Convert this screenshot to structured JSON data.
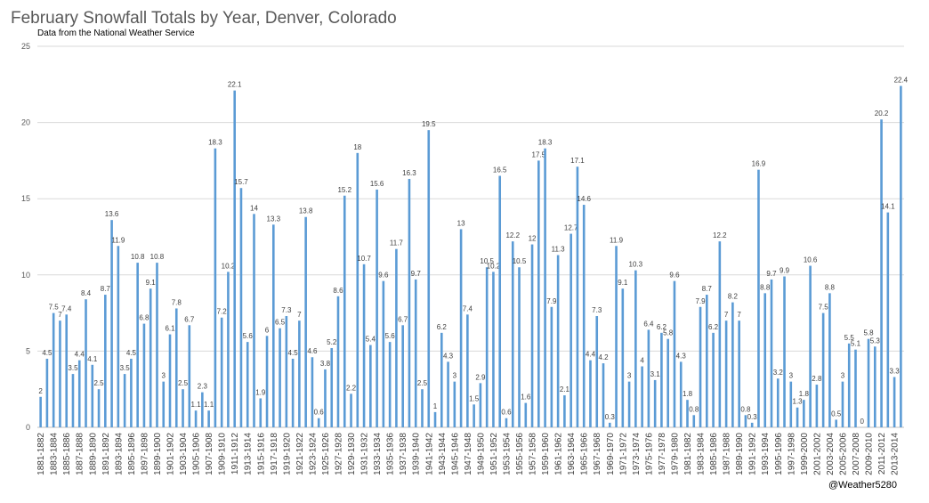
{
  "chart_data": {
    "type": "bar",
    "title": "February Snowfall Totals by Year, Denver, Colorado",
    "subtitle": "Data from the National Weather Service",
    "credit": "@Weather5280",
    "color": "#5b9bd5",
    "grid": true,
    "ylim": [
      0,
      25
    ],
    "yticks": [
      0,
      5,
      10,
      15,
      20,
      25
    ],
    "categories": [
      "1881-1882",
      null,
      "1883-1884",
      null,
      "1885-1886",
      null,
      "1887-1888",
      null,
      "1889-1890",
      null,
      "1891-1892",
      null,
      "1893-1894",
      null,
      "1895-1896",
      null,
      "1897-1898",
      null,
      "1899-1900",
      null,
      "1901-1902",
      null,
      "1903-1904",
      null,
      "1905-1906",
      null,
      "1907-1908",
      null,
      "1909-1910",
      null,
      "1911-1912",
      null,
      "1913-1914",
      null,
      "1915-1916",
      null,
      "1917-1918",
      null,
      "1919-1920",
      null,
      "1921-1922",
      null,
      "1923-1924",
      null,
      "1925-1926",
      null,
      "1927-1928",
      null,
      "1929-1930",
      null,
      "1931-1932",
      null,
      "1933-1934",
      null,
      "1935-1936",
      null,
      "1937-1938",
      null,
      "1939-1940",
      null,
      "1941-1942",
      null,
      "1943-1944",
      null,
      "1945-1946",
      null,
      "1947-1948",
      null,
      "1949-1950",
      null,
      "1951-1952",
      null,
      "1953-1954",
      null,
      "1955-1956",
      null,
      "1957-1958",
      null,
      "1959-1960",
      null,
      "1961-1962",
      null,
      "1963-1964",
      null,
      "1965-1966",
      null,
      "1967-1968",
      null,
      "1969-1970",
      null,
      "1971-1972",
      null,
      "1973-1974",
      null,
      "1975-1976",
      null,
      "1977-1978",
      null,
      "1979-1980",
      null,
      "1981-1982",
      null,
      "1983-1984",
      null,
      "1985-1986",
      null,
      "1987-1988",
      null,
      "1989-1990",
      null,
      "1991-1992",
      null,
      "1993-1994",
      null,
      "1995-1996",
      null,
      "1997-1998",
      null,
      "1999-2000",
      null,
      "2001-2002",
      null,
      "2003-2004",
      null,
      "2005-2006",
      null,
      "2007-2008",
      null,
      "2009-2010",
      null,
      "2011-2012",
      null,
      "2013-2014",
      null
    ],
    "values": [
      2,
      4.5,
      7.5,
      7,
      7.4,
      3.5,
      4.4,
      8.4,
      4.1,
      2.5,
      8.7,
      13.6,
      11.9,
      3.5,
      4.5,
      10.8,
      6.8,
      9.1,
      10.8,
      3,
      6.1,
      7.8,
      2.5,
      6.7,
      1.1,
      2.3,
      1.1,
      18.3,
      7.2,
      10.2,
      22.1,
      15.7,
      5.6,
      14,
      1.9,
      6,
      13.3,
      6.5,
      7.3,
      4.5,
      7,
      13.8,
      4.6,
      0.6,
      3.8,
      5.2,
      8.6,
      15.2,
      2.2,
      18,
      10.7,
      5.4,
      15.6,
      9.6,
      5.6,
      11.7,
      6.7,
      16.3,
      9.7,
      2.5,
      19.5,
      1,
      6.2,
      4.3,
      3,
      13,
      7.4,
      1.5,
      2.9,
      10.5,
      10.2,
      16.5,
      0.6,
      12.2,
      10.5,
      1.6,
      12,
      17.5,
      18.3,
      7.9,
      11.3,
      2.1,
      12.7,
      17.1,
      14.6,
      4.4,
      7.3,
      4.2,
      0.3,
      11.9,
      9.1,
      3,
      10.3,
      4,
      6.4,
      3.1,
      6.2,
      5.8,
      9.6,
      4.3,
      1.8,
      0.8,
      7.9,
      8.7,
      6.2,
      12.2,
      7,
      8.2,
      7,
      0.8,
      0.3,
      16.9,
      8.8,
      9.7,
      3.2,
      9.9,
      3,
      1.3,
      1.8,
      10.6,
      2.8,
      7.5,
      8.8,
      0.5,
      3,
      5.5,
      5.1,
      0,
      5.8,
      5.3,
      20.2,
      14.1,
      3.3,
      22.4
    ]
  }
}
